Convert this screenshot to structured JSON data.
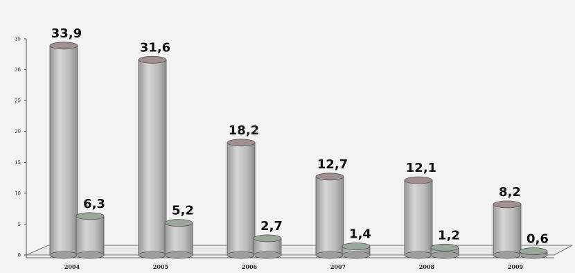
{
  "chart_data": {
    "type": "bar",
    "categories": [
      "2004",
      "2005",
      "2006",
      "2007",
      "2008",
      "2009"
    ],
    "series": [
      {
        "values": [
          33.9,
          31.6,
          18.2,
          12.7,
          12.1,
          8.2
        ]
      },
      {
        "values": [
          6.3,
          5.2,
          2.7,
          1.4,
          1.2,
          0.6
        ]
      }
    ],
    "value_labels": [
      [
        "33,9",
        "31,6",
        "18,2",
        "12,7",
        "12,1",
        "8,2"
      ],
      [
        "6,3",
        "5,2",
        "2,7",
        "1,4",
        "1,2",
        "0,6"
      ]
    ],
    "y_ticks": [
      "0",
      "5",
      "10",
      "15",
      "20",
      "25",
      "30",
      "35"
    ],
    "ylim": [
      0,
      35
    ],
    "title": "",
    "xlabel": "",
    "ylabel": "",
    "grid": false,
    "bar_style": "3d-cylinder",
    "colors": {
      "bar_body": "#b8b8b8",
      "top_tall": "#a09090",
      "top_short": "#9aa89a",
      "floor": "#e8e8e8"
    }
  }
}
